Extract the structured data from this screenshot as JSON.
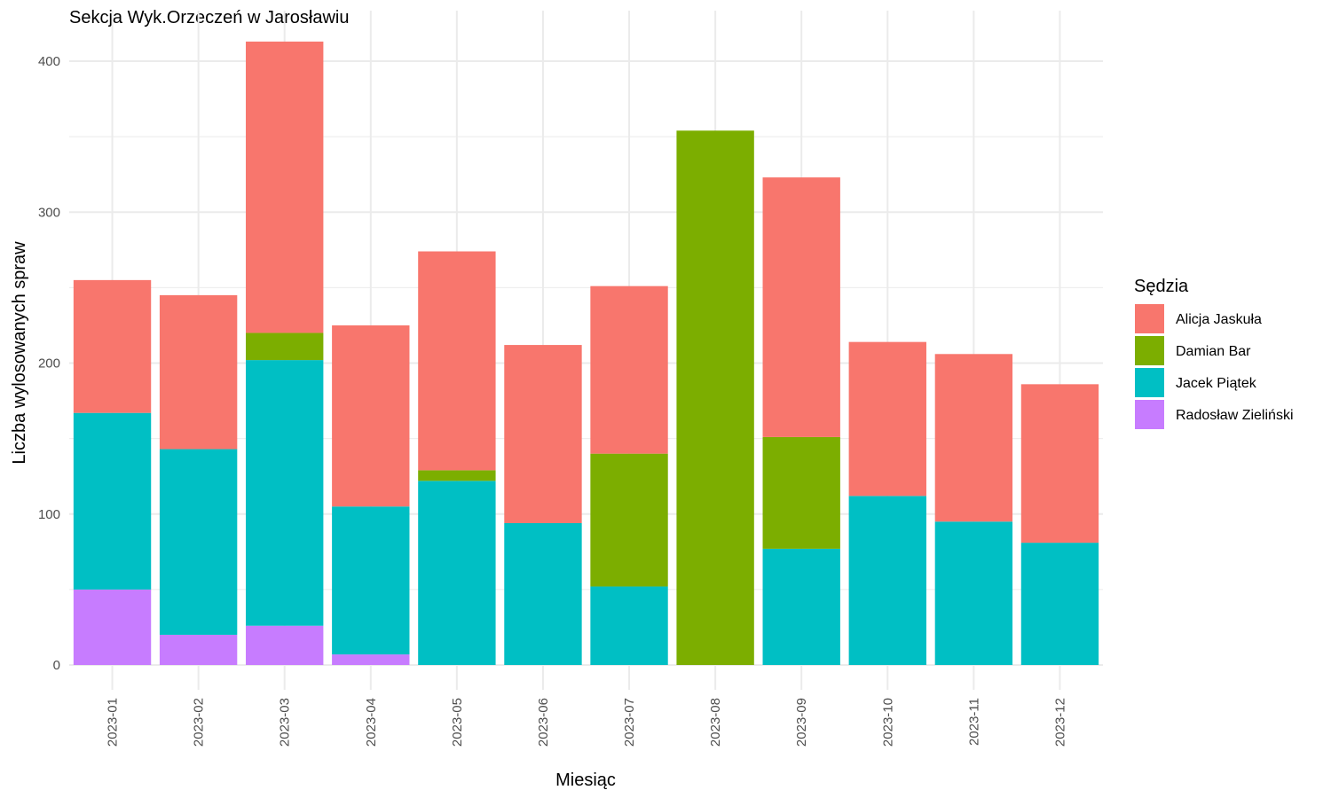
{
  "chart_data": {
    "type": "bar",
    "stacked": true,
    "title": "Sekcja Wyk.Orzeczeń w Jarosławiu",
    "xlabel": "Miesiąc",
    "ylabel": "Liczba wylosowanych spraw",
    "ylim": [
      0,
      420
    ],
    "yticks": [
      0,
      100,
      200,
      300,
      400
    ],
    "grid": true,
    "legend": {
      "title": "Sędzia",
      "position": "right"
    },
    "categories": [
      "2023-01",
      "2023-02",
      "2023-03",
      "2023-04",
      "2023-05",
      "2023-06",
      "2023-07",
      "2023-08",
      "2023-09",
      "2023-10",
      "2023-11",
      "2023-12"
    ],
    "series": [
      {
        "name": "Radosław Zieliński",
        "color": "#C77CFF",
        "values": [
          50,
          20,
          26,
          7,
          0,
          0,
          0,
          0,
          0,
          0,
          0,
          0
        ]
      },
      {
        "name": "Jacek Piątek",
        "color": "#00BFC4",
        "values": [
          117,
          123,
          176,
          98,
          122,
          94,
          52,
          0,
          77,
          112,
          95,
          81
        ]
      },
      {
        "name": "Damian Bar",
        "color": "#7CAE00",
        "values": [
          0,
          0,
          18,
          0,
          7,
          0,
          88,
          354,
          74,
          0,
          0,
          0
        ]
      },
      {
        "name": "Alicja Jaskuła",
        "color": "#F8766D",
        "values": [
          88,
          102,
          193,
          120,
          145,
          118,
          111,
          0,
          172,
          102,
          111,
          105
        ]
      }
    ],
    "legend_order": [
      "Alicja Jaskuła",
      "Damian Bar",
      "Jacek Piątek",
      "Radosław Zieliński"
    ]
  }
}
